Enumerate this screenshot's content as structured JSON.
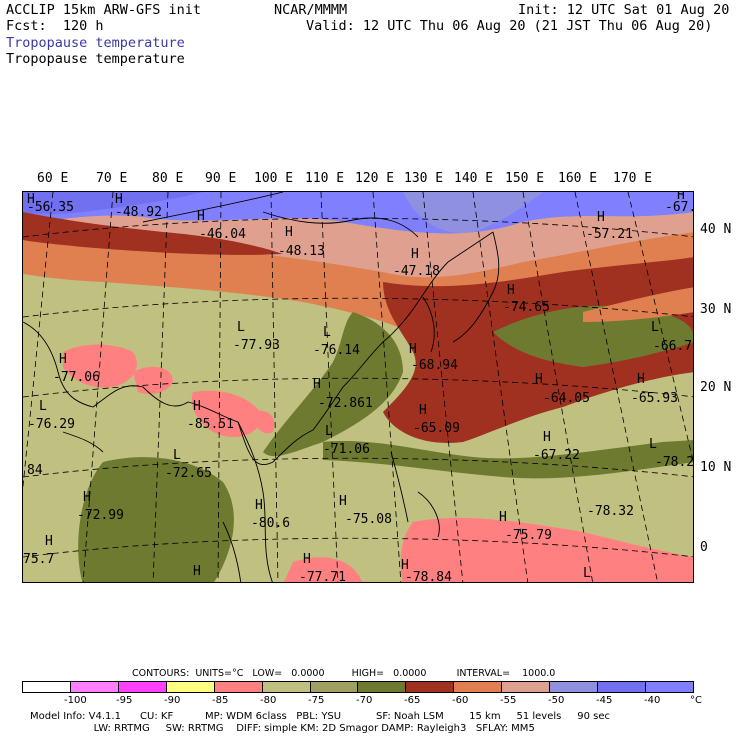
{
  "header": {
    "model_title": "ACCLIP 15km ARW-GFS init",
    "forecast": "Fcst:  120 h",
    "org": "NCAR/MMMM",
    "init_time": "Init: 12 UTC Sat 01 Aug 20",
    "valid_time": "Valid: 12 UTC Thu 06 Aug 20 (21 JST Thu 06 Aug 20)",
    "variable_shaded": "Tropopause temperature",
    "variable_contour": "Tropopause temperature"
  },
  "map": {
    "lon_labels": [
      "60 E",
      "70 E",
      "80 E",
      "90 E",
      "100 E",
      "110 E",
      "120 E",
      "130 E",
      "140 E",
      "150 E",
      "160 E",
      "170 E"
    ],
    "lat_labels": [
      "40 N",
      "30 N",
      "20 N",
      "10 N",
      "0"
    ],
    "value_labels": [
      {
        "text": "-56.35"
      },
      {
        "text": "-48.92"
      },
      {
        "text": "-46.04"
      },
      {
        "text": "-48.13"
      },
      {
        "text": "-47.18"
      },
      {
        "text": "-57.21"
      },
      {
        "text": "-67."
      },
      {
        "text": "-74.65"
      },
      {
        "text": "-66.7"
      },
      {
        "text": "-77.93"
      },
      {
        "text": "-76.14"
      },
      {
        "text": "-68.94"
      },
      {
        "text": "-77.06"
      },
      {
        "text": "-72.861"
      },
      {
        "text": "-64.05"
      },
      {
        "text": "-65.93"
      },
      {
        "text": "-65.09"
      },
      {
        "text": "-76.29"
      },
      {
        "text": "-85.51"
      },
      {
        "text": "-71.06"
      },
      {
        "text": "-67.22"
      },
      {
        "text": "-78.2"
      },
      {
        "text": "84"
      },
      {
        "text": "-72.65"
      },
      {
        "text": "-72.99"
      },
      {
        "text": "-80.6"
      },
      {
        "text": "-75.08"
      },
      {
        "text": "-78.32"
      },
      {
        "text": "-75.79"
      },
      {
        "text": "75.7"
      },
      {
        "text": "-77.71"
      },
      {
        "text": "-78.84"
      }
    ],
    "hl_markers": [
      {
        "text": "H"
      },
      {
        "text": "H"
      },
      {
        "text": "H"
      },
      {
        "text": "H"
      },
      {
        "text": "H"
      },
      {
        "text": "H"
      },
      {
        "text": "H"
      },
      {
        "text": "H"
      },
      {
        "text": "L"
      },
      {
        "text": "L"
      },
      {
        "text": "L"
      },
      {
        "text": "H"
      },
      {
        "text": "H"
      },
      {
        "text": "H"
      },
      {
        "text": "H"
      },
      {
        "text": "H"
      },
      {
        "text": "H"
      },
      {
        "text": "L"
      },
      {
        "text": "H"
      },
      {
        "text": "L"
      },
      {
        "text": "H"
      },
      {
        "text": "L"
      },
      {
        "text": "L"
      },
      {
        "text": "H"
      },
      {
        "text": "H"
      },
      {
        "text": "H"
      },
      {
        "text": "H"
      },
      {
        "text": "H"
      },
      {
        "text": "H"
      },
      {
        "text": "L"
      },
      {
        "text": "H"
      },
      {
        "text": "H"
      }
    ]
  },
  "colorbar": {
    "contours_text": "CONTOURS:  UNITS=°C   LOW=   0.0000         HIGH=   0.0000          INTERVAL=    1000.0",
    "colors": [
      "#ffffff",
      "#ff80ff",
      "#ff40ff",
      "#ffff80",
      "#ff8080",
      "#c0c080",
      "#a0a060",
      "#6e7a30",
      "#a03020",
      "#e08050",
      "#e0a090",
      "#9090e0",
      "#7070f0",
      "#8080ff"
    ],
    "ticks": [
      "-100",
      "-95",
      "-90",
      "-85",
      "-80",
      "-75",
      "-70",
      "-65",
      "-60",
      "-55",
      "-50",
      "-45",
      "-40",
      "°C"
    ]
  },
  "model_info": {
    "line1": "Model Info: V4.1.1      CU: KF          MP: WDM 6class   PBL: YSU           SF: Noah LSM        15 km     51 levels     90 sec",
    "line2": "                    LW: RRTMG     SW: RRTMG    DIFF: simple KM: 2D Smagor DAMP: Rayleigh3   SFLAY: MM5"
  }
}
